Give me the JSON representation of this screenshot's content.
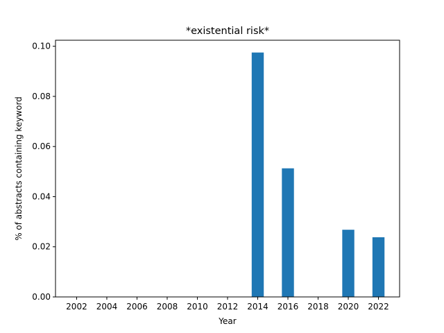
{
  "chart_data": {
    "type": "bar",
    "title": "*existential risk*",
    "xlabel": "Year",
    "ylabel": "% of abstracts containing keyword",
    "x": [
      2002,
      2004,
      2006,
      2008,
      2010,
      2012,
      2014,
      2016,
      2018,
      2020,
      2022
    ],
    "values": [
      0,
      0,
      0,
      0,
      0,
      0,
      0.0975,
      0.0513,
      0,
      0.0268,
      0.0238
    ],
    "x_ticks": [
      "2002",
      "2004",
      "2006",
      "2008",
      "2010",
      "2012",
      "2014",
      "2016",
      "2018",
      "2020",
      "2022"
    ],
    "y_ticks": [
      0.0,
      0.02,
      0.04,
      0.06,
      0.08,
      0.1
    ],
    "y_tick_labels": [
      "0.00",
      "0.02",
      "0.04",
      "0.06",
      "0.08",
      "0.10"
    ],
    "ylim": [
      0,
      0.1024
    ],
    "xlim": [
      2000.6,
      2023.4
    ],
    "bar_color": "#1f77b4",
    "grid": false,
    "legend": "none"
  }
}
